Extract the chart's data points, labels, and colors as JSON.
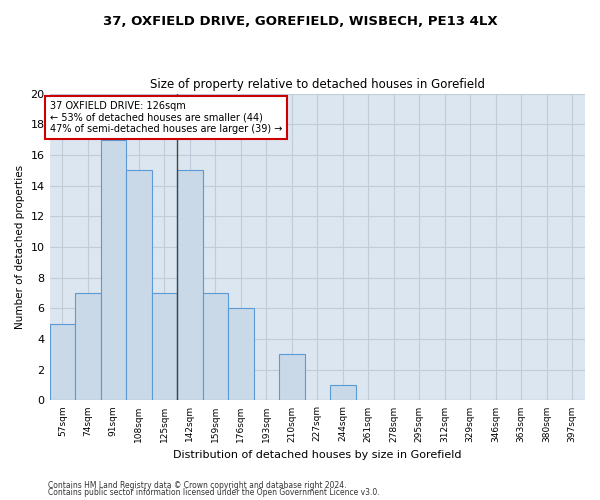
{
  "title1": "37, OXFIELD DRIVE, GOREFIELD, WISBECH, PE13 4LX",
  "title2": "Size of property relative to detached houses in Gorefield",
  "xlabel": "Distribution of detached houses by size in Gorefield",
  "ylabel": "Number of detached properties",
  "bar_labels": [
    "57sqm",
    "74sqm",
    "91sqm",
    "108sqm",
    "125sqm",
    "142sqm",
    "159sqm",
    "176sqm",
    "193sqm",
    "210sqm",
    "227sqm",
    "244sqm",
    "261sqm",
    "278sqm",
    "295sqm",
    "312sqm",
    "329sqm",
    "346sqm",
    "363sqm",
    "380sqm",
    "397sqm"
  ],
  "bar_values": [
    5,
    7,
    17,
    15,
    7,
    15,
    7,
    6,
    0,
    3,
    0,
    1,
    0,
    0,
    0,
    0,
    0,
    0,
    0,
    0,
    0
  ],
  "bar_color": "#c9d9e8",
  "bar_edge_color": "#5b9bd5",
  "vline_index": 4.5,
  "vline_color": "#444444",
  "annotation_text": "37 OXFIELD DRIVE: 126sqm\n← 53% of detached houses are smaller (44)\n47% of semi-detached houses are larger (39) →",
  "annotation_box_color": "#ffffff",
  "annotation_edge_color": "#cc0000",
  "grid_color": "#c0ccd8",
  "plot_bg_color": "#dce6f0",
  "footer1": "Contains HM Land Registry data © Crown copyright and database right 2024.",
  "footer2": "Contains public sector information licensed under the Open Government Licence v3.0.",
  "ylim": [
    0,
    20
  ],
  "yticks": [
    0,
    2,
    4,
    6,
    8,
    10,
    12,
    14,
    16,
    18,
    20
  ]
}
